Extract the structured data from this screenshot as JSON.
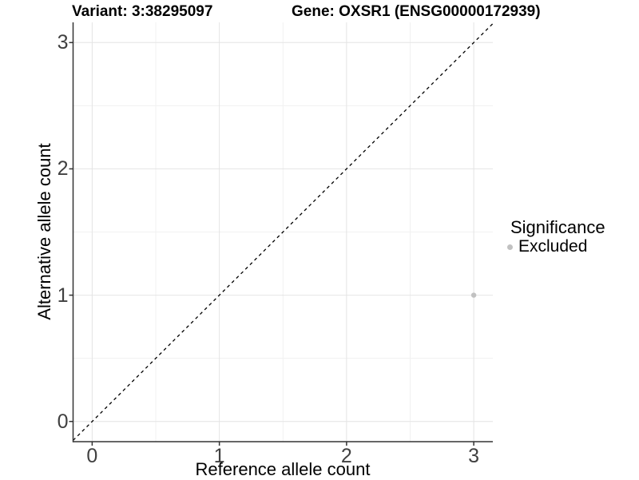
{
  "chart_data": {
    "type": "scatter",
    "title_left": "Variant: 3:38295097",
    "title_right": "Gene: OXSR1 (ENSG00000172939)",
    "xlabel": "Reference allele count",
    "ylabel": "Alternative allele count",
    "xlim": [
      -0.15,
      3.15
    ],
    "ylim": [
      -0.16,
      3.16
    ],
    "x_ticks": [
      0,
      1,
      2,
      3
    ],
    "y_ticks": [
      0,
      1,
      2,
      3
    ],
    "minor_ticks": [
      0.5,
      1.5,
      2.5
    ],
    "grid": "major and minor gridlines on, white background",
    "identity_line": {
      "style": "dashed",
      "slope": 1,
      "intercept": 0
    },
    "series": [
      {
        "name": "Excluded",
        "points": [
          {
            "x": 3,
            "y": 1
          }
        ]
      }
    ],
    "legend": {
      "title": "Significance",
      "position": "right",
      "items": [
        {
          "label": "Excluded",
          "color": "#c1c1c1"
        }
      ]
    },
    "colors": {
      "point": "#c1c1c1",
      "grid_major": "#e4e4e4",
      "grid_minor": "#f1f1f1",
      "axis_line": "#333333",
      "tick_mark": "#333333",
      "tick_label": "#404040",
      "diagonal_line": "#000000",
      "background": "#ffffff"
    }
  }
}
